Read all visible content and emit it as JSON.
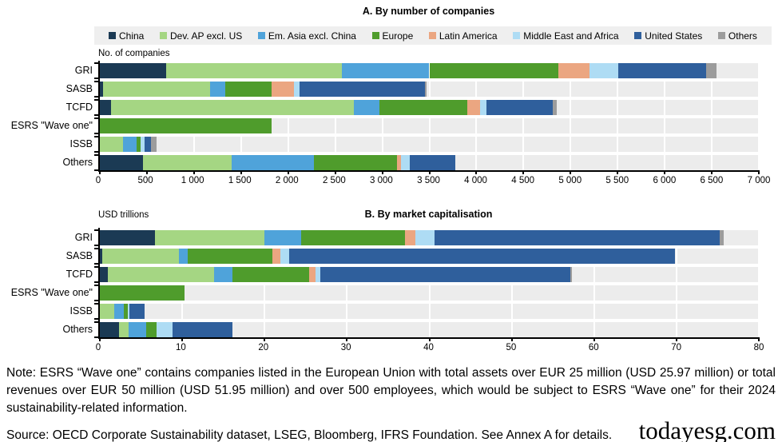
{
  "figure": {
    "panel_a_title": "A. By number of companies",
    "panel_b_title": "B. By market capitalisation",
    "panel_a_axis_sublabel": "No. of companies",
    "panel_b_axis_sublabel": "USD trillions"
  },
  "legend": {
    "items": [
      {
        "label": "China",
        "color": "#1b3a54"
      },
      {
        "label": "Dev. AP excl. US",
        "color": "#a5d683"
      },
      {
        "label": "Em.  Asia excl. China",
        "color": "#4fa3da"
      },
      {
        "label": "Europe",
        "color": "#4f9c2c"
      },
      {
        "label": "Latin America",
        "color": "#eba681"
      },
      {
        "label": "Middle East and Africa",
        "color": "#aedcf4"
      },
      {
        "label": "United States",
        "color": "#2f5f9c"
      },
      {
        "label": "Others",
        "color": "#9c9c9c"
      }
    ]
  },
  "chart_data": [
    {
      "type": "bar",
      "orientation": "horizontal",
      "stacked": true,
      "title": "A. By number of companies",
      "xlabel": "No. of companies",
      "categories": [
        "GRI",
        "SASB",
        "TCFD",
        "ESRS \"Wave one\"",
        "ISSB",
        "Others"
      ],
      "xlim": [
        0,
        7000
      ],
      "xticks": [
        0,
        500,
        1000,
        1500,
        2000,
        2500,
        3000,
        3500,
        4000,
        4500,
        5000,
        5500,
        6000,
        6500,
        7000
      ],
      "xtick_labels": [
        "0",
        "500",
        "1 000",
        "1 500",
        "2 000",
        "2 500",
        "3 000",
        "3 500",
        "4 000",
        "4 500",
        "5 000",
        "5 500",
        "6 000",
        "6 500",
        "7 000"
      ],
      "grid": true,
      "legend_position": "top",
      "series": [
        {
          "name": "China",
          "color": "#1b3a54",
          "values": [
            700,
            30,
            120,
            0,
            0,
            460
          ]
        },
        {
          "name": "Dev. AP excl. US",
          "color": "#a5d683",
          "values": [
            1870,
            1140,
            2575,
            0,
            250,
            940
          ]
        },
        {
          "name": "Em.  Asia excl. China",
          "color": "#4fa3da",
          "values": [
            930,
            160,
            275,
            0,
            140,
            875
          ]
        },
        {
          "name": "Europe",
          "color": "#4f9c2c",
          "values": [
            1370,
            490,
            930,
            1820,
            45,
            880
          ]
        },
        {
          "name": "Latin America",
          "color": "#eba681",
          "values": [
            330,
            240,
            140,
            0,
            0,
            40
          ]
        },
        {
          "name": "Middle East and Africa",
          "color": "#aedcf4",
          "values": [
            310,
            60,
            70,
            0,
            40,
            100
          ]
        },
        {
          "name": "United States",
          "color": "#2f5f9c",
          "values": [
            930,
            1330,
            700,
            0,
            65,
            480
          ]
        },
        {
          "name": "Others",
          "color": "#9c9c9c",
          "values": [
            110,
            20,
            40,
            0,
            60,
            0
          ]
        }
      ]
    },
    {
      "type": "bar",
      "orientation": "horizontal",
      "stacked": true,
      "title": "B. By market capitalisation",
      "xlabel": "USD trillions",
      "categories": [
        "GRI",
        "SASB",
        "TCFD",
        "ESRS \"Wave one\"",
        "ISSB",
        "Others"
      ],
      "xlim": [
        0,
        80
      ],
      "xticks": [
        0,
        10,
        20,
        30,
        40,
        50,
        60,
        70,
        80
      ],
      "xtick_labels": [
        "0",
        "10",
        "20",
        "30",
        "40",
        "50",
        "60",
        "70",
        "80"
      ],
      "grid": true,
      "legend_position": "top",
      "series": [
        {
          "name": "China",
          "color": "#1b3a54",
          "values": [
            6.7,
            0.3,
            1.0,
            0,
            0,
            2.3
          ]
        },
        {
          "name": "Dev. AP excl. US",
          "color": "#a5d683",
          "values": [
            13.3,
            9.3,
            12.9,
            0,
            1.7,
            1.2
          ]
        },
        {
          "name": "Em.  Asia excl. China",
          "color": "#4fa3da",
          "values": [
            4.4,
            1.1,
            2.2,
            0,
            1.2,
            2.1
          ]
        },
        {
          "name": "Europe",
          "color": "#4f9c2c",
          "values": [
            12.6,
            10.2,
            9.3,
            10.3,
            0.5,
            1.3
          ]
        },
        {
          "name": "Latin America",
          "color": "#eba681",
          "values": [
            1.3,
            1.0,
            0.8,
            0,
            0,
            0
          ]
        },
        {
          "name": "Middle East and Africa",
          "color": "#aedcf4",
          "values": [
            2.3,
            1.1,
            0.6,
            0,
            0.2,
            1.9
          ]
        },
        {
          "name": "United States",
          "color": "#2f5f9c",
          "values": [
            34.6,
            46.8,
            30.3,
            0,
            1.8,
            7.3
          ]
        },
        {
          "name": "Others",
          "color": "#9c9c9c",
          "values": [
            0.5,
            0,
            0.2,
            0,
            0,
            0
          ]
        }
      ]
    }
  ],
  "footnote": {
    "note": "Note: ESRS “Wave one” contains companies listed in the European Union with total assets over EUR 25 million (USD 25.97 million) or total revenues over EUR 50 million (USD 51.95 million) and over 500 employees, which would be subject to ESRS “Wave one” for their 2024 sustainability-related information.",
    "source": "Source: OECD Corporate Sustainability dataset, LSEG, Bloomberg, IFRS Foundation. See Annex A for details.",
    "watermark": "todayesg.com"
  }
}
